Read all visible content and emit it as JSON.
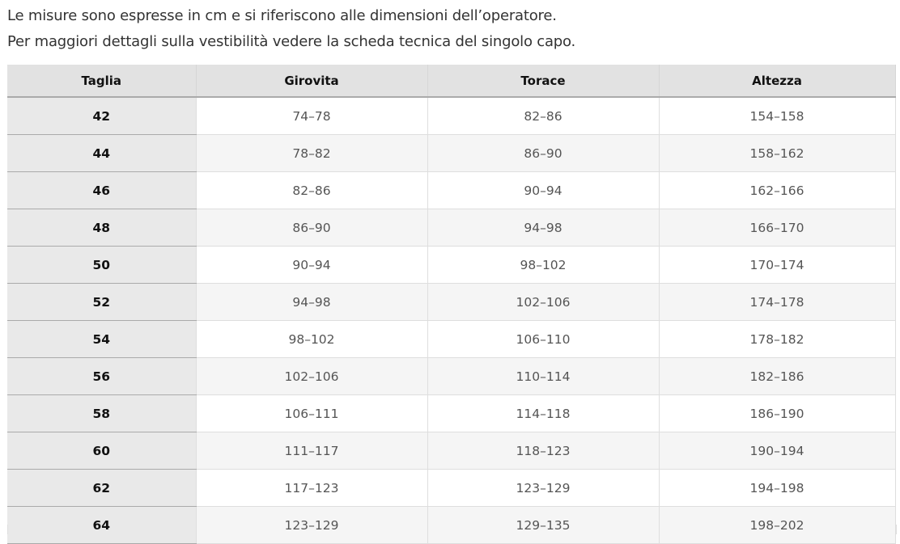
{
  "intro": {
    "line1": "Le misure sono espresse in cm e si riferiscono alle dimensioni dell’operatore.",
    "line2": "Per maggiori dettagli sulla vestibilità vedere la scheda tecnica del singolo capo."
  },
  "table": {
    "headers": [
      "Taglia",
      "Girovita",
      "Torace",
      "Altezza"
    ],
    "rows": [
      [
        "42",
        "74–78",
        "82–86",
        "154–158"
      ],
      [
        "44",
        "78–82",
        "86–90",
        "158–162"
      ],
      [
        "46",
        "82–86",
        "90–94",
        "162–166"
      ],
      [
        "48",
        "86–90",
        "94–98",
        "166–170"
      ],
      [
        "50",
        "90–94",
        "98–102",
        "170–174"
      ],
      [
        "52",
        "94–98",
        "102–106",
        "174–178"
      ],
      [
        "54",
        "98–102",
        "106–110",
        "178–182"
      ],
      [
        "56",
        "102–106",
        "110–114",
        "182–186"
      ],
      [
        "58",
        "106–111",
        "114–118",
        "186–190"
      ],
      [
        "60",
        "111–117",
        "118–123",
        "190–194"
      ],
      [
        "62",
        "117–123",
        "123–129",
        "194–198"
      ],
      [
        "64",
        "123–129",
        "129–135",
        "198–202"
      ]
    ]
  }
}
